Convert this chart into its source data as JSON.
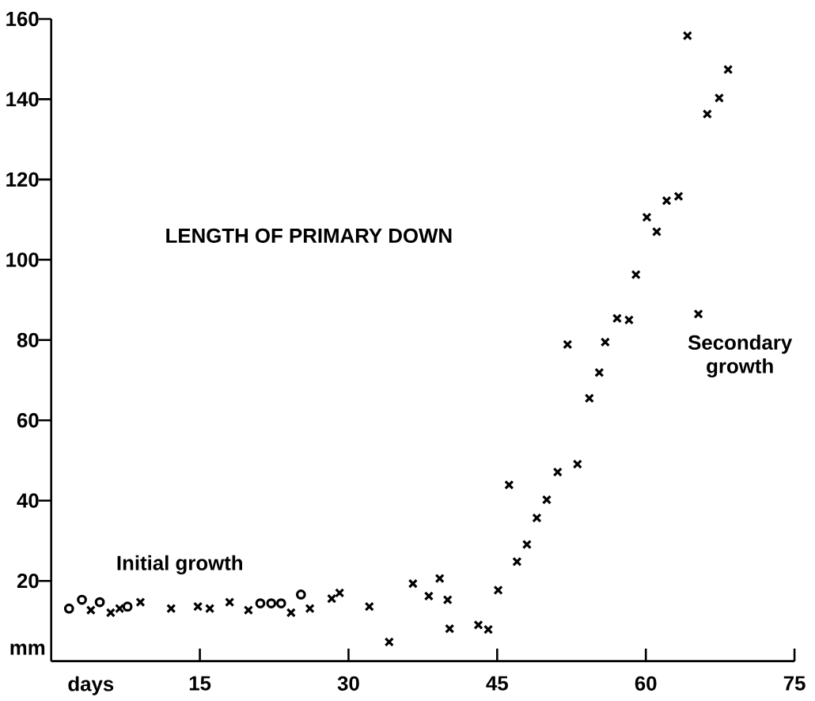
{
  "chart_data": {
    "type": "scatter",
    "title": "LENGTH OF PRIMARY DOWN",
    "xlabel": "days",
    "ylabel": "mm",
    "annotations": [
      "Initial growth",
      "Secondary growth"
    ],
    "xlim": [
      0,
      75
    ],
    "ylim": [
      0,
      160
    ],
    "xticks": [
      15,
      30,
      45,
      60,
      75
    ],
    "yticks": [
      20,
      40,
      60,
      80,
      100,
      120,
      140,
      160
    ],
    "grid": false,
    "series": [
      {
        "color": "#000000",
        "marker": "circle",
        "x": [
          1.8,
          3.1,
          4.9,
          7.7,
          21.1,
          22.2,
          23.2,
          25.2
        ],
        "values": [
          13.1,
          15.3,
          14.7,
          13.6,
          14.4,
          14.4,
          14.4,
          16.6
        ]
      },
      {
        "color": "#000000",
        "marker": "cross",
        "x": [
          4.0,
          6.0,
          6.9,
          9.0,
          12.1,
          14.8,
          16.0,
          18.0,
          19.9,
          24.2,
          26.1,
          28.3,
          29.1,
          32.1,
          34.1,
          36.5,
          38.1,
          39.2,
          40.0,
          40.2,
          43.1,
          44.1,
          45.1,
          46.2,
          47.0,
          48.0,
          49.0,
          50.0,
          51.1,
          52.1,
          53.1,
          54.3,
          55.3,
          55.9,
          57.1,
          58.3,
          59.0,
          60.1,
          61.1,
          62.1,
          63.3,
          64.2,
          65.3,
          66.2,
          67.4,
          68.3
        ],
        "values": [
          12.7,
          12.1,
          13.1,
          14.7,
          13.1,
          13.6,
          13.1,
          14.7,
          12.7,
          12.1,
          13.1,
          15.6,
          17.0,
          13.6,
          4.8,
          19.3,
          16.2,
          20.6,
          15.3,
          8.1,
          9.0,
          7.9,
          17.7,
          43.9,
          24.8,
          29.1,
          35.7,
          40.2,
          47.1,
          78.9,
          49.1,
          65.5,
          71.9,
          79.5,
          85.4,
          85.0,
          96.3,
          110.6,
          107.0,
          114.7,
          115.8,
          155.8,
          86.5,
          136.3,
          140.3,
          147.4
        ]
      }
    ]
  }
}
